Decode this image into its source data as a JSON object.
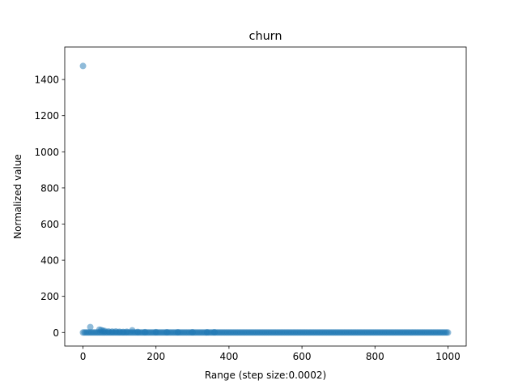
{
  "chart_data": {
    "type": "scatter",
    "title": "churn",
    "xlabel": "Range (step size:0.0002)",
    "ylabel": "Normalized value",
    "xlim": [
      -50,
      1050
    ],
    "ylim": [
      -75,
      1580
    ],
    "xticks": [
      0,
      200,
      400,
      600,
      800,
      1000
    ],
    "yticks": [
      0,
      200,
      400,
      600,
      800,
      1000,
      1200,
      1400
    ],
    "grid": false,
    "marker_color": "#1f77b4",
    "marker_alpha": 0.5,
    "series": [
      {
        "outliers": [
          [
            0,
            1475
          ],
          [
            20,
            30
          ],
          [
            45,
            16
          ],
          [
            50,
            13
          ],
          [
            55,
            10
          ],
          [
            60,
            8
          ],
          [
            70,
            6
          ],
          [
            80,
            5
          ],
          [
            90,
            6
          ],
          [
            100,
            4
          ],
          [
            110,
            3
          ],
          [
            120,
            4
          ],
          [
            135,
            12
          ],
          [
            150,
            3
          ],
          [
            170,
            2
          ],
          [
            200,
            2
          ],
          [
            230,
            1.5
          ],
          [
            260,
            1.5
          ],
          [
            300,
            1
          ],
          [
            340,
            1
          ],
          [
            360,
            1.5
          ]
        ],
        "baseline": {
          "x_start": 0,
          "x_end": 1000,
          "step": 4,
          "y": 0
        }
      }
    ]
  }
}
